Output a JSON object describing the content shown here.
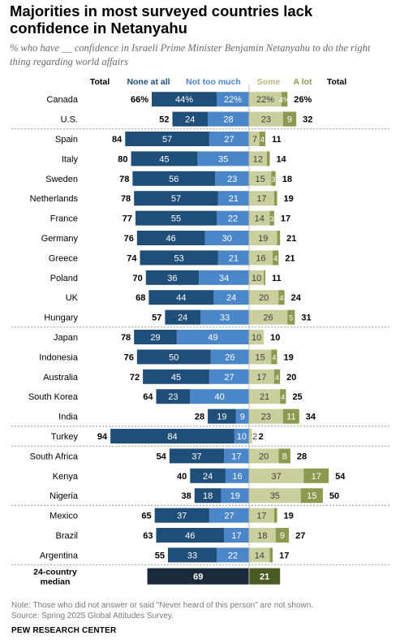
{
  "title": "Majorities in most surveyed countries lack confidence in Netanyahu",
  "subtitle": "% who have __ confidence in Israeli Prime Minister Benjamin Netanyahu to do the right thing regarding world affairs",
  "note": "Note: Those who did not answer or said \"Never heard of this person\" are not shown.",
  "source": "Source: Spring 2025 Global Attitudes Survey.",
  "org": "PEW RESEARCH CENTER",
  "colors": {
    "none_at_all": "#1f4e79",
    "not_too_much": "#4a86c8",
    "some": "#c9cf9d",
    "a_lot": "#8b9a4e"
  },
  "chart_data": {
    "type": "bar",
    "orientation": "horizontal-diverging",
    "headers": {
      "total_left": "Total",
      "none_at_all": "None at all",
      "not_too_much": "Not too much",
      "some": "Some",
      "a_lot": "A lot",
      "total_right": "Total"
    },
    "rows": [
      {
        "country": "Canada",
        "none": 44,
        "nottoo": 22,
        "total_neg": 66,
        "some": 22,
        "alot": 4,
        "total_pos": 26,
        "pct": true
      },
      {
        "country": "U.S.",
        "none": 24,
        "nottoo": 28,
        "total_neg": 52,
        "some": 23,
        "alot": 9,
        "total_pos": 32
      },
      {
        "country": "Spain",
        "none": 57,
        "nottoo": 27,
        "total_neg": 84,
        "some": 7,
        "alot": 4,
        "total_pos": 11
      },
      {
        "country": "Italy",
        "none": 45,
        "nottoo": 35,
        "total_neg": 80,
        "some": 12,
        "alot": 2,
        "total_pos": 14
      },
      {
        "country": "Sweden",
        "none": 56,
        "nottoo": 23,
        "total_neg": 78,
        "some": 15,
        "alot": 3,
        "total_pos": 18
      },
      {
        "country": "Netherlands",
        "none": 57,
        "nottoo": 21,
        "total_neg": 78,
        "some": 17,
        "alot": 2,
        "total_pos": 19
      },
      {
        "country": "France",
        "none": 55,
        "nottoo": 22,
        "total_neg": 77,
        "some": 14,
        "alot": 3,
        "total_pos": 17
      },
      {
        "country": "Germany",
        "none": 46,
        "nottoo": 30,
        "total_neg": 76,
        "some": 19,
        "alot": 2,
        "total_pos": 21
      },
      {
        "country": "Greece",
        "none": 53,
        "nottoo": 21,
        "total_neg": 74,
        "some": 16,
        "alot": 4,
        "total_pos": 21
      },
      {
        "country": "Poland",
        "none": 36,
        "nottoo": 34,
        "total_neg": 70,
        "some": 10,
        "alot": 1,
        "total_pos": 11
      },
      {
        "country": "UK",
        "none": 44,
        "nottoo": 24,
        "total_neg": 68,
        "some": 20,
        "alot": 4,
        "total_pos": 24
      },
      {
        "country": "Hungary",
        "none": 24,
        "nottoo": 33,
        "total_neg": 57,
        "some": 26,
        "alot": 5,
        "total_pos": 31
      },
      {
        "country": "Japan",
        "none": 29,
        "nottoo": 49,
        "total_neg": 78,
        "some": 10,
        "alot": 0,
        "total_pos": 10
      },
      {
        "country": "Indonesia",
        "none": 50,
        "nottoo": 26,
        "total_neg": 76,
        "some": 15,
        "alot": 4,
        "total_pos": 19
      },
      {
        "country": "Australia",
        "none": 45,
        "nottoo": 27,
        "total_neg": 72,
        "some": 17,
        "alot": 4,
        "total_pos": 20
      },
      {
        "country": "South Korea",
        "none": 23,
        "nottoo": 40,
        "total_neg": 64,
        "some": 21,
        "alot": 4,
        "total_pos": 25
      },
      {
        "country": "India",
        "none": 19,
        "nottoo": 9,
        "total_neg": 28,
        "some": 23,
        "alot": 11,
        "total_pos": 34
      },
      {
        "country": "Turkey",
        "none": 84,
        "nottoo": 10,
        "total_neg": 94,
        "some": 2,
        "alot": 0,
        "total_pos": 2
      },
      {
        "country": "South Africa",
        "none": 37,
        "nottoo": 17,
        "total_neg": 54,
        "some": 20,
        "alot": 8,
        "total_pos": 28
      },
      {
        "country": "Kenya",
        "none": 24,
        "nottoo": 16,
        "total_neg": 40,
        "some": 37,
        "alot": 17,
        "total_pos": 54
      },
      {
        "country": "Nigeria",
        "none": 18,
        "nottoo": 19,
        "total_neg": 38,
        "some": 35,
        "alot": 15,
        "total_pos": 50
      },
      {
        "country": "Mexico",
        "none": 37,
        "nottoo": 27,
        "total_neg": 65,
        "some": 17,
        "alot": 2,
        "total_pos": 19
      },
      {
        "country": "Brazil",
        "none": 46,
        "nottoo": 17,
        "total_neg": 63,
        "some": 18,
        "alot": 9,
        "total_pos": 27
      },
      {
        "country": "Argentina",
        "none": 33,
        "nottoo": 22,
        "total_neg": 55,
        "some": 14,
        "alot": 2,
        "total_pos": 17
      }
    ],
    "median": {
      "label_line1": "24-country",
      "label_line2": "median",
      "neg": 69,
      "pos": 21
    }
  }
}
